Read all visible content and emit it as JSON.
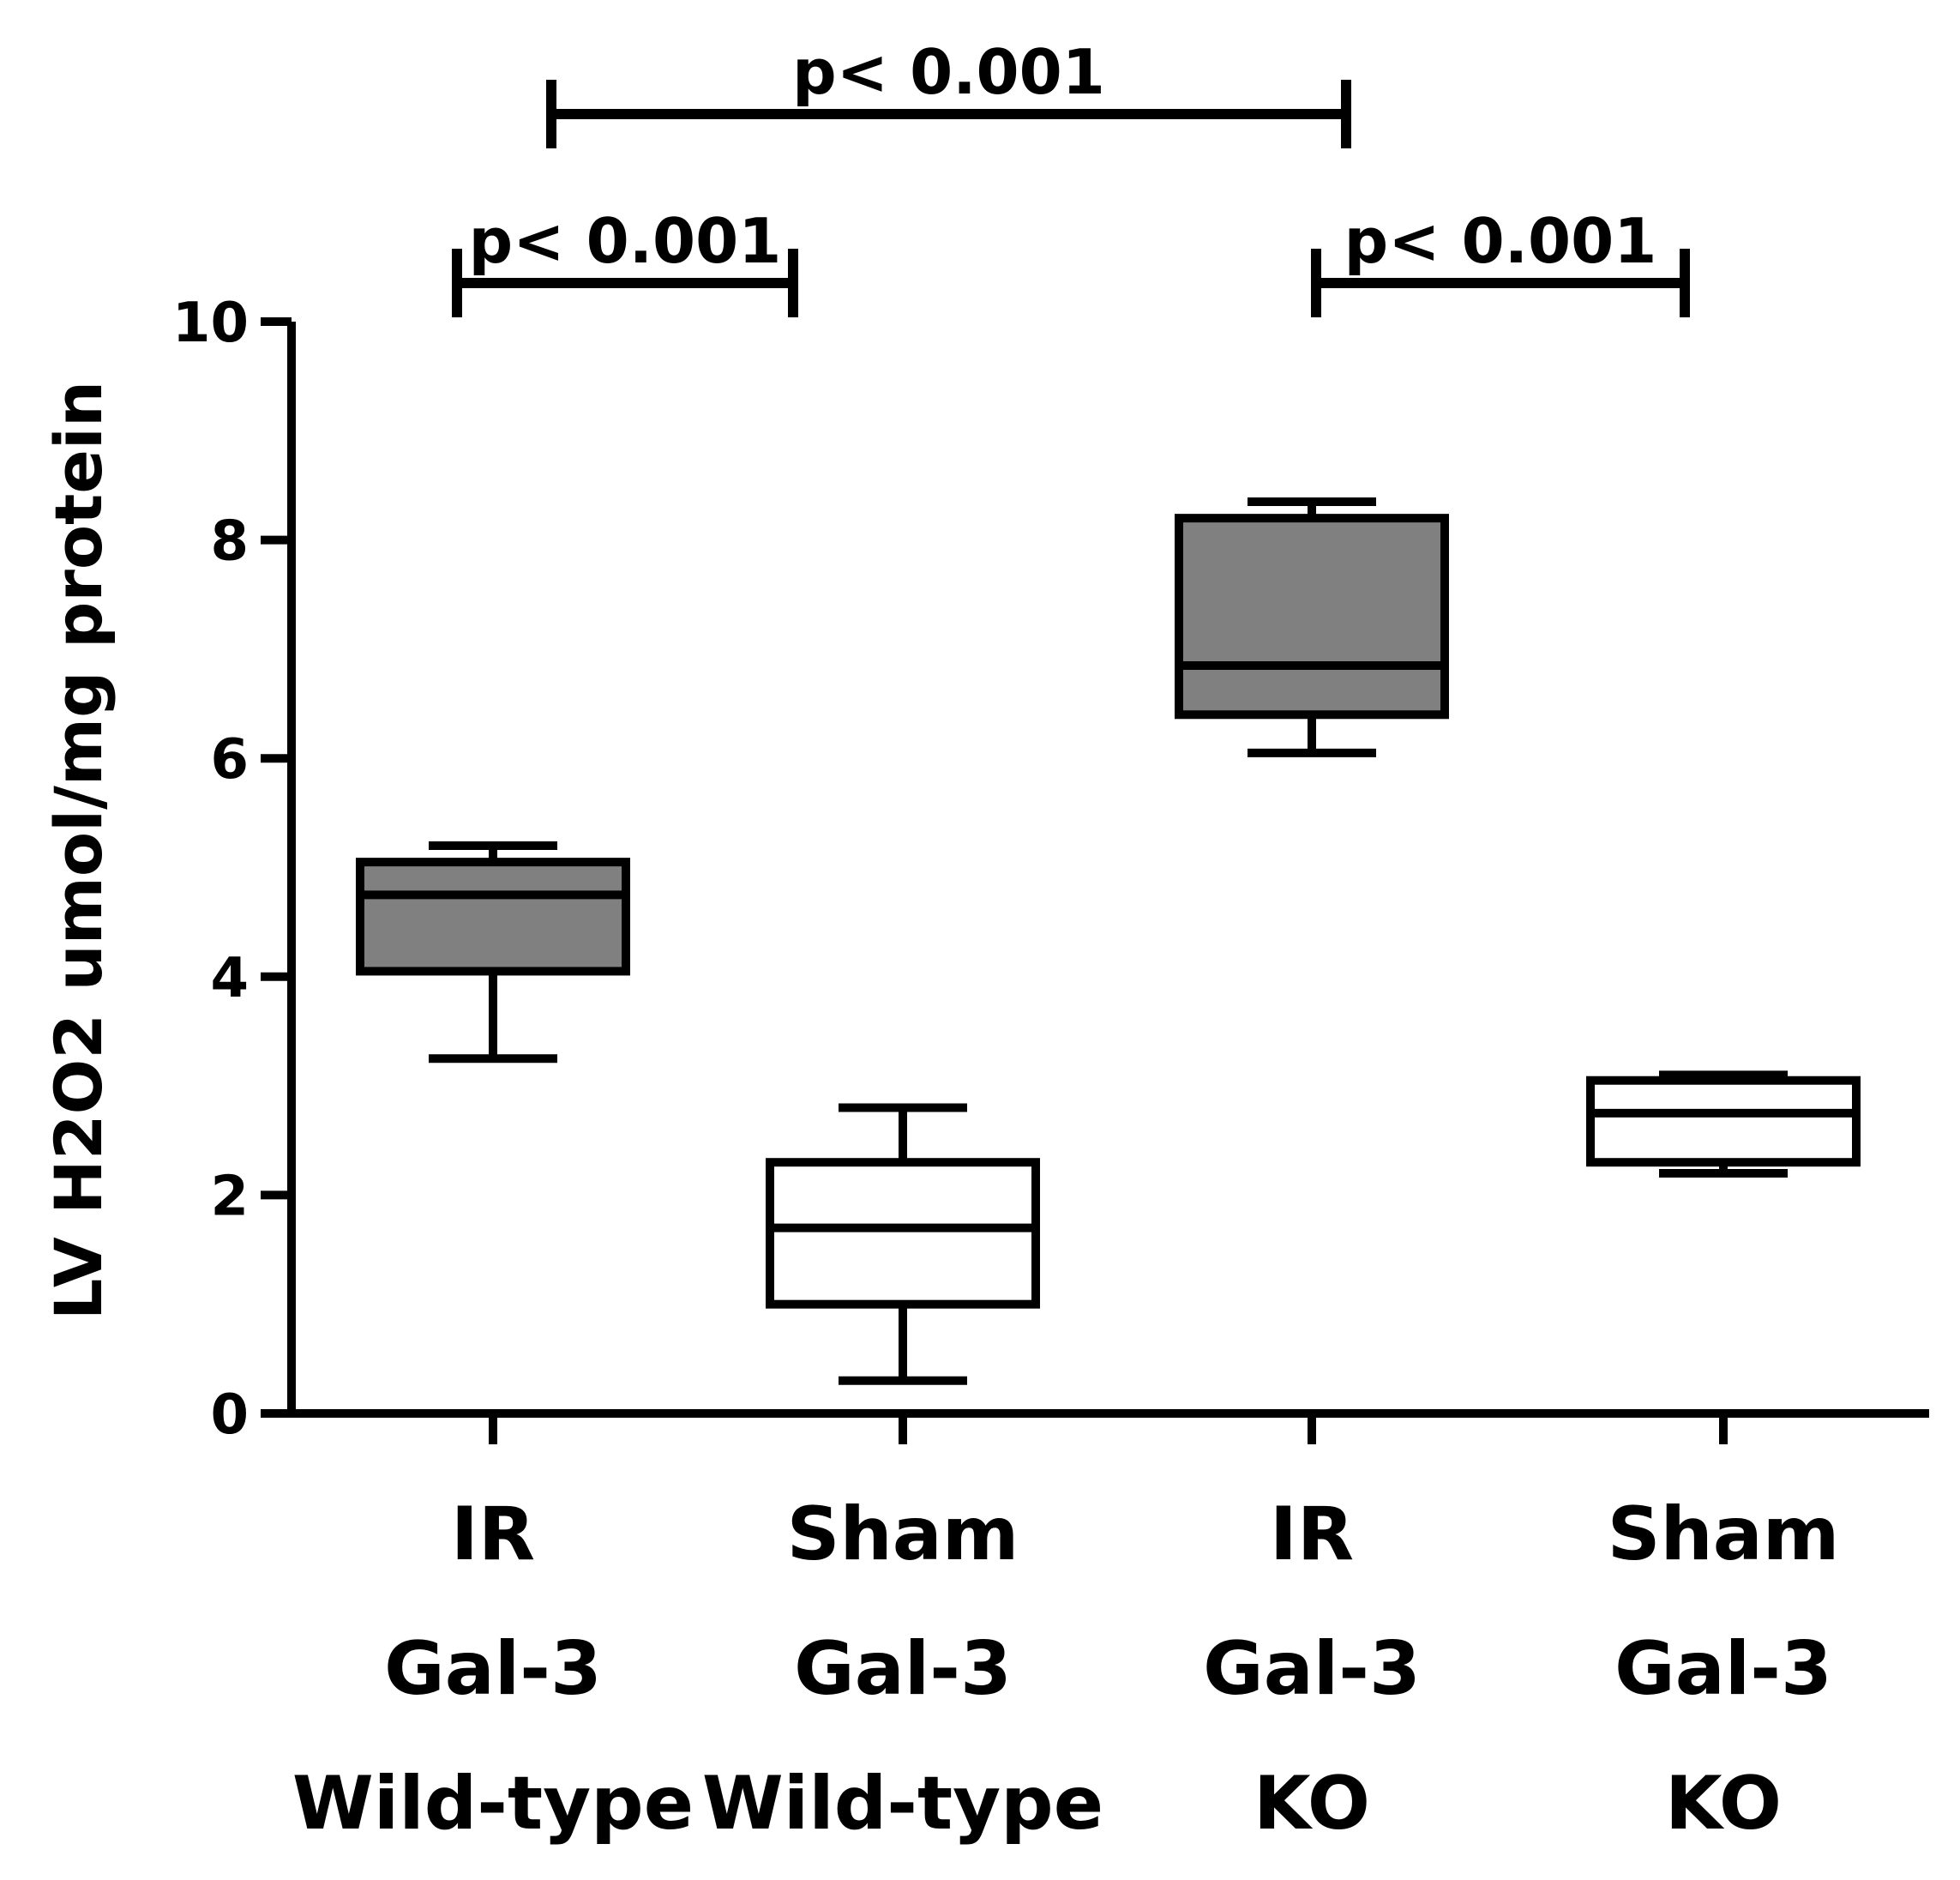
{
  "chart_data": {
    "type": "box",
    "title": "",
    "xlabel": "",
    "ylabel": "LV H2O2 umol/mg protein",
    "ylim": [
      0,
      10
    ],
    "yticks": [
      0,
      2,
      4,
      6,
      8,
      10
    ],
    "grid": false,
    "categories": [
      {
        "lines": [
          "IR",
          "Gal-3",
          "Wild-type"
        ],
        "fill": "#808080"
      },
      {
        "lines": [
          "Sham",
          "Gal-3",
          "Wild-type"
        ],
        "fill": "#ffffff"
      },
      {
        "lines": [
          "IR",
          "Gal-3",
          "KO"
        ],
        "fill": "#808080"
      },
      {
        "lines": [
          "Sham",
          "Gal-3",
          "KO"
        ],
        "fill": "#ffffff"
      }
    ],
    "boxes": [
      {
        "min": 3.25,
        "q1": 4.05,
        "median": 4.75,
        "q3": 5.05,
        "max": 5.2
      },
      {
        "min": 0.3,
        "q1": 1.0,
        "median": 1.7,
        "q3": 2.3,
        "max": 2.8
      },
      {
        "min": 6.05,
        "q1": 6.4,
        "median": 6.85,
        "q3": 8.2,
        "max": 8.35
      },
      {
        "min": 2.2,
        "q1": 2.3,
        "median": 2.75,
        "q3": 3.05,
        "max": 3.1
      }
    ],
    "comparisons": [
      {
        "from": 0,
        "to": 2,
        "label": "p< 0.001",
        "level": 2
      },
      {
        "from": 0,
        "to": 1,
        "label": "p< 0.001",
        "level": 1
      },
      {
        "from": 2,
        "to": 3,
        "label": "p< 0.001",
        "level": 1
      }
    ]
  }
}
